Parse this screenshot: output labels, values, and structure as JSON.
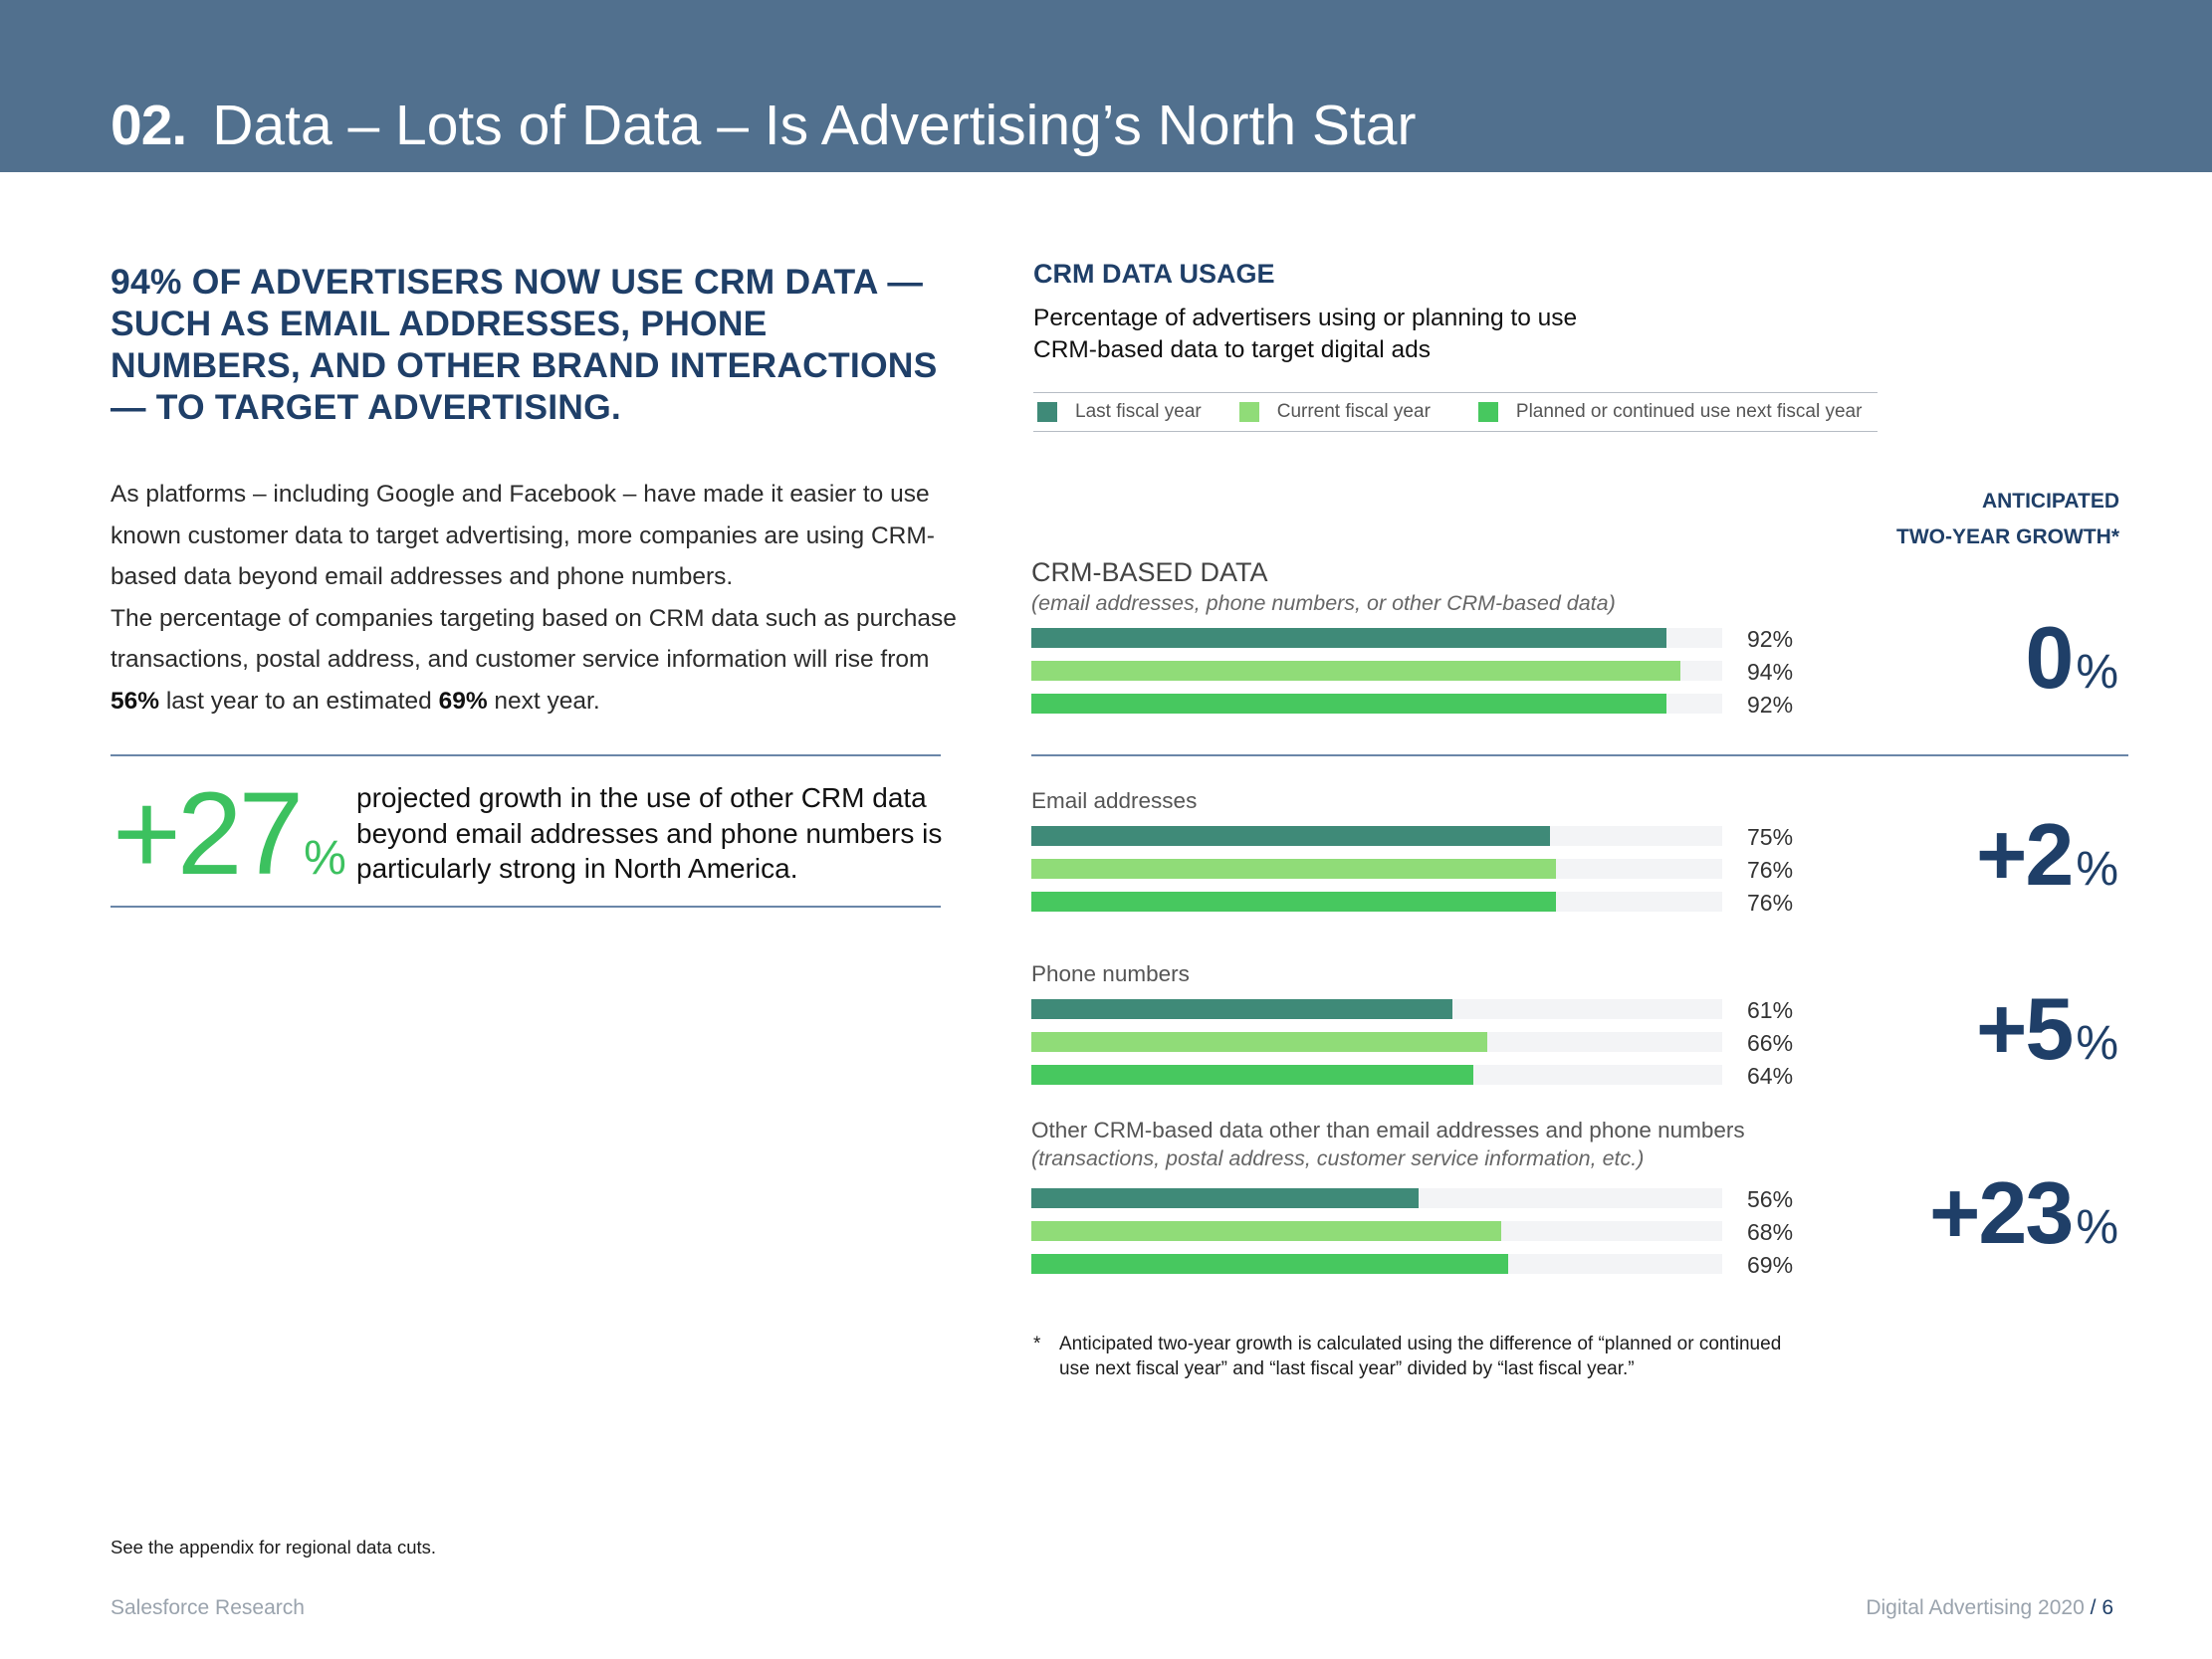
{
  "header": {
    "number": "02.",
    "title": "Data – Lots of Data – Is Advertising’s North Star",
    "color": "#51708e"
  },
  "left": {
    "headline": "94% of advertisers now use CRM data — such as email addresses, phone numbers, and other brand interactions — to target advertising.",
    "body_p1": "As platforms – including Google and Facebook – have made it easier to use known customer data to target advertising, more companies are using CRM-based data beyond email addresses and phone numbers.",
    "body_p2_start": "The percentage of companies targeting based on CRM data such as purchase transactions, postal address, and customer service information will rise from ",
    "body_p2_v1": "56%",
    "body_p2_mid": " last year to an estimated ",
    "body_p2_v2": "69%",
    "body_p2_end": " next year.",
    "stat_number": "+27",
    "stat_unit": "%",
    "stat_text": "projected growth in the use of other CRM data beyond email addresses and phone numbers is particularly strong in North America.",
    "footnote": "See the appendix for regional data cuts."
  },
  "footer": {
    "left": "Salesforce Research",
    "right_title": "Digital Advertising 2020",
    "separator": "/",
    "page": "6"
  },
  "chart_data": {
    "type": "bar",
    "orientation": "horizontal",
    "title": "CRM DATA USAGE",
    "subtitle_line1": "Percentage of advertisers using or planning to use",
    "subtitle_line2": "CRM-based data to target digital ads",
    "xlim": [
      0,
      100
    ],
    "legend_position": "top",
    "series": [
      {
        "name": "Last fiscal year",
        "color": "#3f8a78",
        "values": [
          92,
          75,
          61,
          56
        ]
      },
      {
        "name": "Current fiscal year",
        "color": "#90dc78",
        "values": [
          94,
          76,
          66,
          68
        ]
      },
      {
        "name": "Planned or continued use next fiscal year",
        "color": "#47c85f",
        "values": [
          92,
          76,
          64,
          69
        ]
      }
    ],
    "categories": [
      {
        "label": "CRM-BASED DATA",
        "sublabel": "(email addresses, phone numbers, or other CRM-based data)",
        "labels": [
          "92%",
          "94%",
          "92%"
        ],
        "growth": "0"
      },
      {
        "label": "Email addresses",
        "sublabel": "",
        "labels": [
          "75%",
          "76%",
          "76%"
        ],
        "growth": "+2"
      },
      {
        "label": "Phone numbers",
        "sublabel": "",
        "labels": [
          "61%",
          "66%",
          "64%"
        ],
        "growth": "+5"
      },
      {
        "label": "Other CRM-based data other than email addresses and phone numbers",
        "sublabel": "(transactions, postal address, customer service information, etc.)",
        "labels": [
          "56%",
          "68%",
          "69%"
        ],
        "growth": "+23"
      }
    ],
    "growth_heading_line1": "ANTICIPATED",
    "growth_heading_line2": "TWO-YEAR GROWTH*",
    "growth_unit": "%",
    "note_star": "*",
    "note": "Anticipated two-year growth is calculated using the difference of “planned or continued use next fiscal year” and “last fiscal year” divided by “last fiscal year.”",
    "track_color": "#f3f4f6"
  }
}
